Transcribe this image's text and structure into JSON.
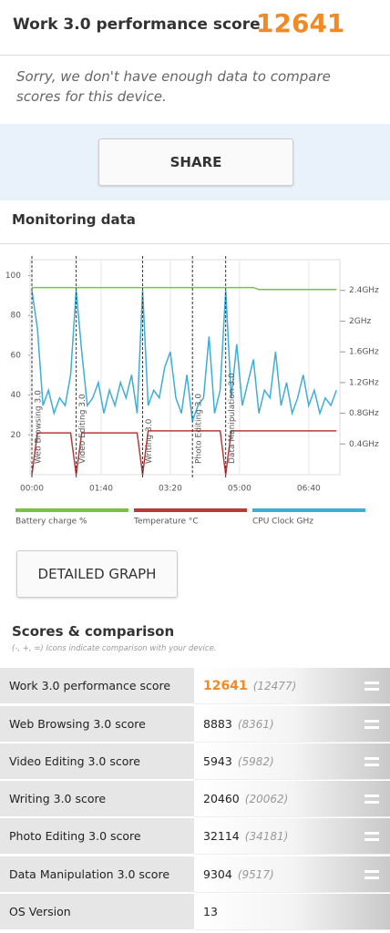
{
  "header": {
    "title": "Work 3.0 performance score",
    "score": 12641
  },
  "message": "Sorry, we don't have enough data to compare scores for this device.",
  "share_button": "SHARE",
  "monitoring_title": "Monitoring data",
  "chart_data": {
    "type": "line",
    "x": [
      0,
      8,
      16,
      24,
      32,
      40,
      48,
      56,
      64,
      72,
      80,
      88,
      96,
      104,
      112,
      120,
      128,
      136,
      144,
      152,
      160,
      168,
      176,
      184,
      192,
      200,
      208,
      216,
      224,
      232,
      240,
      248,
      256,
      264,
      272,
      280,
      288,
      296,
      304,
      312,
      320,
      328,
      336,
      344,
      352,
      360,
      368,
      376,
      384,
      392,
      400,
      408,
      416,
      424,
      432,
      440
    ],
    "xlim": [
      0,
      445
    ],
    "xticks": [
      {
        "value": 0,
        "label": "00:00"
      },
      {
        "value": 100,
        "label": "01:40"
      },
      {
        "value": 200,
        "label": "03:20"
      },
      {
        "value": 300,
        "label": "05:00"
      },
      {
        "value": 400,
        "label": "06:40"
      }
    ],
    "ylim": [
      0,
      108
    ],
    "yticks": [
      20,
      40,
      60,
      80,
      100
    ],
    "y2lim": [
      0,
      2.8
    ],
    "y2ticks": [
      {
        "value": 0.4,
        "label": "0.4GHz"
      },
      {
        "value": 0.8,
        "label": "0.8GHz"
      },
      {
        "value": 1.2,
        "label": "1.2GHz"
      },
      {
        "value": 1.6,
        "label": "1.6GHz"
      },
      {
        "value": 2,
        "label": "2GHz"
      },
      {
        "value": 2.4,
        "label": "2.4GHz"
      }
    ],
    "grid": true,
    "markers": [
      {
        "x": 0,
        "label": "Web Browsing 3.0"
      },
      {
        "x": 64,
        "label": "Video Editing 3.0"
      },
      {
        "x": 160,
        "label": "Writing 3.0"
      },
      {
        "x": 232,
        "label": "Photo Editing 3.0"
      },
      {
        "x": 280,
        "label": "Data Manipulation 3.0"
      }
    ],
    "series": [
      {
        "name": "Battery charge %",
        "color": "#7cc142",
        "values": [
          94,
          94,
          94,
          94,
          94,
          94,
          94,
          94,
          94,
          94,
          94,
          94,
          94,
          94,
          94,
          94,
          94,
          94,
          94,
          94,
          94,
          94,
          94,
          94,
          94,
          94,
          94,
          94,
          94,
          94,
          94,
          94,
          94,
          94,
          94,
          94,
          94,
          94,
          94,
          94,
          94,
          93,
          93,
          93,
          93,
          93,
          93,
          93,
          93,
          93,
          93,
          93,
          93,
          93,
          93,
          93
        ]
      },
      {
        "name": "Temperature °C",
        "color": "#b83b3b",
        "values": [
          0,
          21,
          21,
          21,
          21,
          21,
          21,
          21,
          0,
          21,
          21,
          21,
          21,
          21,
          21,
          21,
          21,
          21,
          21,
          21,
          0,
          22,
          22,
          22,
          22,
          22,
          22,
          22,
          22,
          22,
          22,
          22,
          22,
          22,
          22,
          0,
          22,
          22,
          22,
          22,
          22,
          22,
          22,
          22,
          22,
          22,
          22,
          22,
          22,
          22,
          22,
          22,
          22,
          22,
          22,
          22
        ]
      },
      {
        "name": "CPU Clock GHz",
        "color": "#3eaed6",
        "axis": "y2",
        "values": [
          2.4,
          1.9,
          0.9,
          1.1,
          0.8,
          1.0,
          0.9,
          1.3,
          2.4,
          1.6,
          0.9,
          1.0,
          1.2,
          0.8,
          1.1,
          0.9,
          1.2,
          1.0,
          1.3,
          0.8,
          2.4,
          0.9,
          1.1,
          1.0,
          1.4,
          1.6,
          1.0,
          0.8,
          1.3,
          0.7,
          0.9,
          1.0,
          1.8,
          0.8,
          1.1,
          2.4,
          1.0,
          1.7,
          0.9,
          1.2,
          1.5,
          0.8,
          1.1,
          1.0,
          1.6,
          0.9,
          1.2,
          0.8,
          1.0,
          1.3,
          0.9,
          1.1,
          0.8,
          1.0,
          0.9,
          1.1
        ]
      }
    ]
  },
  "detailed_button": "DETAILED GRAPH",
  "scores": {
    "title": "Scores & comparison",
    "subtitle": "(-, +, =) Icons indicate comparison with your device.",
    "rows": [
      {
        "name": "Work 3.0 performance score",
        "score": 12641,
        "compare": "(12477)"
      },
      {
        "name": "Web Browsing 3.0 score",
        "score": 8883,
        "compare": "(8361)"
      },
      {
        "name": "Video Editing 3.0 score",
        "score": 5943,
        "compare": "(5982)"
      },
      {
        "name": "Writing 3.0 score",
        "score": 20460,
        "compare": "(20062)"
      },
      {
        "name": "Photo Editing 3.0 score",
        "score": 32114,
        "compare": "(34181)"
      },
      {
        "name": "Data Manipulation 3.0 score",
        "score": 9304,
        "compare": "(9517)"
      },
      {
        "name": "OS Version",
        "score": 13
      }
    ]
  }
}
